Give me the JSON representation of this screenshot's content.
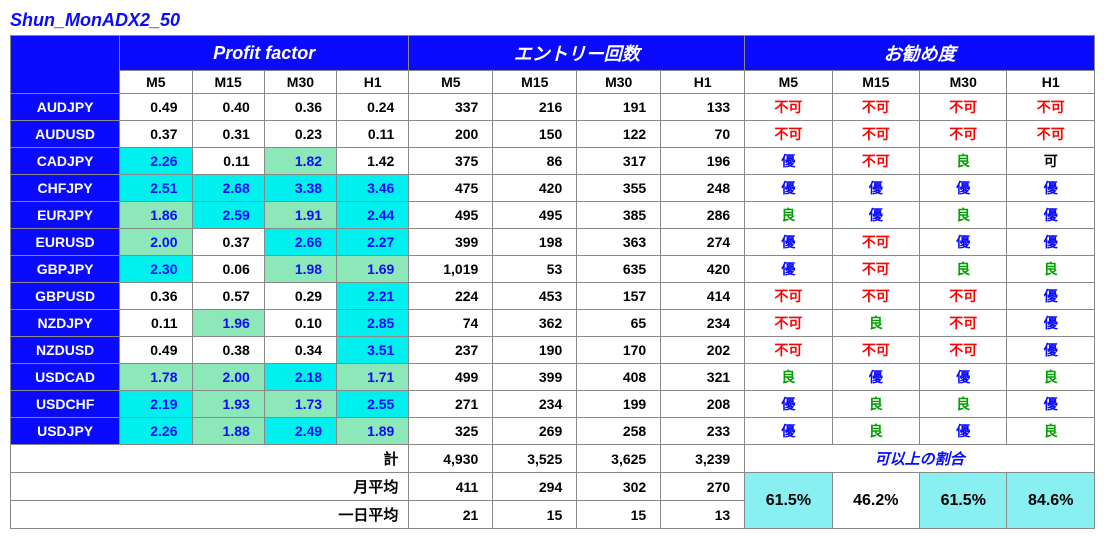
{
  "title": "Shun_MonADX2_50",
  "groupHeaders": [
    "Profit factor",
    "エントリー回数",
    "お勧め度"
  ],
  "timeframes": [
    "M5",
    "M15",
    "M30",
    "H1"
  ],
  "colors": {
    "blue": "#0a0aff",
    "bg_cyan": "#00f0f0",
    "bg_green": "#8ce8b8",
    "bg_white": "#ffffff",
    "rec_fuka": "#ff0000",
    "rec_ka": "#000000",
    "rec_ryo": "#00a000",
    "rec_yu": "#0a0aff",
    "ratio_bg": "#88f0f0"
  },
  "recLabels": {
    "fuka": "不可",
    "ka": "可",
    "ryo": "良",
    "yu": "優"
  },
  "rows": [
    {
      "pair": "AUDJPY",
      "pf": [
        {
          "v": "0.49",
          "bg": "bg_white"
        },
        {
          "v": "0.40",
          "bg": "bg_white"
        },
        {
          "v": "0.36",
          "bg": "bg_white"
        },
        {
          "v": "0.24",
          "bg": "bg_white"
        }
      ],
      "entry": [
        "337",
        "216",
        "191",
        "133"
      ],
      "rec": [
        "fuka",
        "fuka",
        "fuka",
        "fuka"
      ]
    },
    {
      "pair": "AUDUSD",
      "pf": [
        {
          "v": "0.37",
          "bg": "bg_white"
        },
        {
          "v": "0.31",
          "bg": "bg_white"
        },
        {
          "v": "0.23",
          "bg": "bg_white"
        },
        {
          "v": "0.11",
          "bg": "bg_white"
        }
      ],
      "entry": [
        "200",
        "150",
        "122",
        "70"
      ],
      "rec": [
        "fuka",
        "fuka",
        "fuka",
        "fuka"
      ]
    },
    {
      "pair": "CADJPY",
      "pf": [
        {
          "v": "2.26",
          "bg": "bg_cyan"
        },
        {
          "v": "0.11",
          "bg": "bg_white"
        },
        {
          "v": "1.82",
          "bg": "bg_green"
        },
        {
          "v": "1.42",
          "bg": "bg_white"
        }
      ],
      "entry": [
        "375",
        "86",
        "317",
        "196"
      ],
      "rec": [
        "yu",
        "fuka",
        "ryo",
        "ka"
      ]
    },
    {
      "pair": "CHFJPY",
      "pf": [
        {
          "v": "2.51",
          "bg": "bg_cyan"
        },
        {
          "v": "2.68",
          "bg": "bg_cyan"
        },
        {
          "v": "3.38",
          "bg": "bg_cyan"
        },
        {
          "v": "3.46",
          "bg": "bg_cyan"
        }
      ],
      "entry": [
        "475",
        "420",
        "355",
        "248"
      ],
      "rec": [
        "yu",
        "yu",
        "yu",
        "yu"
      ]
    },
    {
      "pair": "EURJPY",
      "pf": [
        {
          "v": "1.86",
          "bg": "bg_green"
        },
        {
          "v": "2.59",
          "bg": "bg_cyan"
        },
        {
          "v": "1.91",
          "bg": "bg_green"
        },
        {
          "v": "2.44",
          "bg": "bg_cyan"
        }
      ],
      "entry": [
        "495",
        "495",
        "385",
        "286"
      ],
      "rec": [
        "ryo",
        "yu",
        "ryo",
        "yu"
      ]
    },
    {
      "pair": "EURUSD",
      "pf": [
        {
          "v": "2.00",
          "bg": "bg_green"
        },
        {
          "v": "0.37",
          "bg": "bg_white"
        },
        {
          "v": "2.66",
          "bg": "bg_cyan"
        },
        {
          "v": "2.27",
          "bg": "bg_cyan"
        }
      ],
      "entry": [
        "399",
        "198",
        "363",
        "274"
      ],
      "rec": [
        "yu",
        "fuka",
        "yu",
        "yu"
      ]
    },
    {
      "pair": "GBPJPY",
      "pf": [
        {
          "v": "2.30",
          "bg": "bg_cyan"
        },
        {
          "v": "0.06",
          "bg": "bg_white"
        },
        {
          "v": "1.98",
          "bg": "bg_green"
        },
        {
          "v": "1.69",
          "bg": "bg_green"
        }
      ],
      "entry": [
        "1,019",
        "53",
        "635",
        "420"
      ],
      "rec": [
        "yu",
        "fuka",
        "ryo",
        "ryo"
      ]
    },
    {
      "pair": "GBPUSD",
      "pf": [
        {
          "v": "0.36",
          "bg": "bg_white"
        },
        {
          "v": "0.57",
          "bg": "bg_white"
        },
        {
          "v": "0.29",
          "bg": "bg_white"
        },
        {
          "v": "2.21",
          "bg": "bg_cyan"
        }
      ],
      "entry": [
        "224",
        "453",
        "157",
        "414"
      ],
      "rec": [
        "fuka",
        "fuka",
        "fuka",
        "yu"
      ]
    },
    {
      "pair": "NZDJPY",
      "pf": [
        {
          "v": "0.11",
          "bg": "bg_white"
        },
        {
          "v": "1.96",
          "bg": "bg_green"
        },
        {
          "v": "0.10",
          "bg": "bg_white"
        },
        {
          "v": "2.85",
          "bg": "bg_cyan"
        }
      ],
      "entry": [
        "74",
        "362",
        "65",
        "234"
      ],
      "rec": [
        "fuka",
        "ryo",
        "fuka",
        "yu"
      ]
    },
    {
      "pair": "NZDUSD",
      "pf": [
        {
          "v": "0.49",
          "bg": "bg_white"
        },
        {
          "v": "0.38",
          "bg": "bg_white"
        },
        {
          "v": "0.34",
          "bg": "bg_white"
        },
        {
          "v": "3.51",
          "bg": "bg_cyan"
        }
      ],
      "entry": [
        "237",
        "190",
        "170",
        "202"
      ],
      "rec": [
        "fuka",
        "fuka",
        "fuka",
        "yu"
      ]
    },
    {
      "pair": "USDCAD",
      "pf": [
        {
          "v": "1.78",
          "bg": "bg_green"
        },
        {
          "v": "2.00",
          "bg": "bg_green"
        },
        {
          "v": "2.18",
          "bg": "bg_cyan"
        },
        {
          "v": "1.71",
          "bg": "bg_green"
        }
      ],
      "entry": [
        "499",
        "399",
        "408",
        "321"
      ],
      "rec": [
        "ryo",
        "yu",
        "yu",
        "ryo"
      ]
    },
    {
      "pair": "USDCHF",
      "pf": [
        {
          "v": "2.19",
          "bg": "bg_cyan"
        },
        {
          "v": "1.93",
          "bg": "bg_green"
        },
        {
          "v": "1.73",
          "bg": "bg_green"
        },
        {
          "v": "2.55",
          "bg": "bg_cyan"
        }
      ],
      "entry": [
        "271",
        "234",
        "199",
        "208"
      ],
      "rec": [
        "yu",
        "ryo",
        "ryo",
        "yu"
      ]
    },
    {
      "pair": "USDJPY",
      "pf": [
        {
          "v": "2.26",
          "bg": "bg_cyan"
        },
        {
          "v": "1.88",
          "bg": "bg_green"
        },
        {
          "v": "2.49",
          "bg": "bg_cyan"
        },
        {
          "v": "1.89",
          "bg": "bg_green"
        }
      ],
      "entry": [
        "325",
        "269",
        "258",
        "233"
      ],
      "rec": [
        "yu",
        "ryo",
        "yu",
        "ryo"
      ]
    }
  ],
  "summary": {
    "totalLabel": "計",
    "total": [
      "4,930",
      "3,525",
      "3,625",
      "3,239"
    ],
    "monthLabel": "月平均",
    "month": [
      "411",
      "294",
      "302",
      "270"
    ],
    "dayLabel": "一日平均",
    "day": [
      "21",
      "15",
      "15",
      "13"
    ],
    "ratioLabel": "可以上の割合",
    "ratio": [
      {
        "v": "61.5%",
        "bg": "ratio_bg"
      },
      {
        "v": "46.2%",
        "bg": "bg_white"
      },
      {
        "v": "61.5%",
        "bg": "ratio_bg"
      },
      {
        "v": "84.6%",
        "bg": "ratio_bg"
      }
    ]
  }
}
